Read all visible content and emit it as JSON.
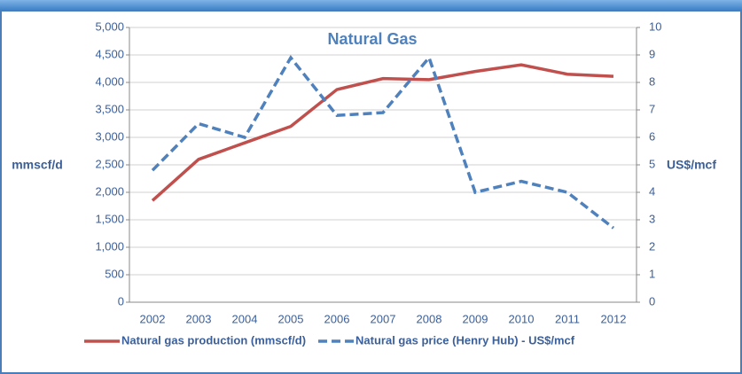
{
  "chart_data": {
    "type": "line",
    "title": "Natural Gas",
    "categories": [
      "2002",
      "2003",
      "2004",
      "2005",
      "2006",
      "2007",
      "2008",
      "2009",
      "2010",
      "2011",
      "2012"
    ],
    "ylabel": "mmscf/d",
    "y2label": "US$/mcf",
    "ylim": [
      0,
      5000
    ],
    "yticks": [
      0,
      500,
      {
        "value": 1000,
        "label": "1,000"
      },
      {
        "value": 1500,
        "label": "1,500"
      },
      {
        "value": 2000,
        "label": "2,000"
      },
      {
        "value": 2500,
        "label": "2,500"
      },
      {
        "value": 3000,
        "label": "3,000"
      },
      {
        "value": 3500,
        "label": "3,500"
      },
      {
        "value": 4000,
        "label": "4,000"
      },
      {
        "value": 4500,
        "label": "4,500"
      },
      {
        "value": 5000,
        "label": "5,000"
      }
    ],
    "y2lim": [
      0,
      10
    ],
    "y2ticks": [
      0,
      1,
      2,
      3,
      4,
      5,
      6,
      7,
      8,
      9,
      10
    ],
    "grid": true,
    "legend": "bottom",
    "series": [
      {
        "name": "Natural gas production (mmscf/d)",
        "color": "#c0504d",
        "style": "solid",
        "values": [
          1850,
          2600,
          2900,
          3200,
          3870,
          4070,
          4050,
          4200,
          4320,
          4150,
          4110
        ]
      },
      {
        "name": "Natural gas price (Henry Hub) - US$/mcf",
        "color": "#4f81bd",
        "style": "dashed",
        "axis": "y2",
        "values": [
          4.8,
          6.5,
          6.0,
          8.9,
          6.8,
          6.9,
          8.9,
          4.0,
          4.4,
          4.0,
          2.7
        ]
      }
    ]
  }
}
